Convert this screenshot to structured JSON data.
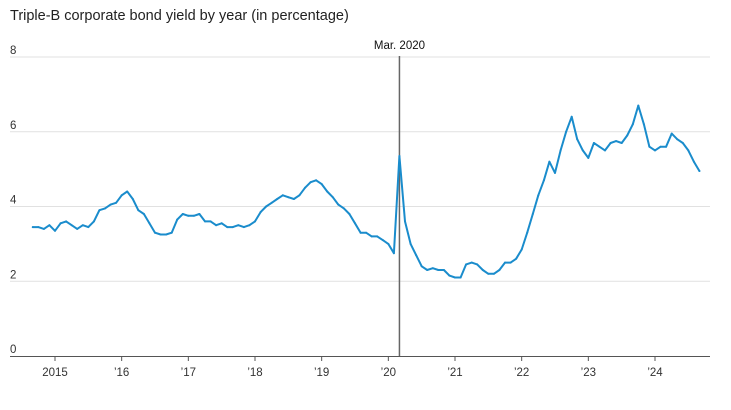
{
  "chart_data": {
    "type": "line",
    "title": "Triple-B corporate bond yield by year (in percentage)",
    "xlabel": "",
    "ylabel": "",
    "x_range": [
      "2014-09",
      "2024-09"
    ],
    "ylim": [
      0,
      8
    ],
    "y_ticks": [
      0,
      2,
      4,
      6,
      8
    ],
    "x_ticks": [
      {
        "date": "2015-01",
        "label": "2015"
      },
      {
        "date": "2016-01",
        "label": "’16"
      },
      {
        "date": "2017-01",
        "label": "’17"
      },
      {
        "date": "2018-01",
        "label": "’18"
      },
      {
        "date": "2019-01",
        "label": "’19"
      },
      {
        "date": "2020-01",
        "label": "’20"
      },
      {
        "date": "2021-01",
        "label": "’21"
      },
      {
        "date": "2022-01",
        "label": "’22"
      },
      {
        "date": "2023-01",
        "label": "’23"
      },
      {
        "date": "2024-01",
        "label": "’24"
      }
    ],
    "grid": "horizontal",
    "line_color": "#1a8ccc",
    "annotation": {
      "date": "2020-03",
      "label": "Mar. 2020",
      "color": "#666666"
    },
    "series": [
      {
        "points": [
          [
            "2014-09",
            3.45
          ],
          [
            "2014-10",
            3.45
          ],
          [
            "2014-11",
            3.4
          ],
          [
            "2014-12",
            3.5
          ],
          [
            "2015-01",
            3.35
          ],
          [
            "2015-02",
            3.55
          ],
          [
            "2015-03",
            3.6
          ],
          [
            "2015-04",
            3.5
          ],
          [
            "2015-05",
            3.4
          ],
          [
            "2015-06",
            3.5
          ],
          [
            "2015-07",
            3.45
          ],
          [
            "2015-08",
            3.6
          ],
          [
            "2015-09",
            3.9
          ],
          [
            "2015-10",
            3.95
          ],
          [
            "2015-11",
            4.05
          ],
          [
            "2015-12",
            4.1
          ],
          [
            "2016-01",
            4.3
          ],
          [
            "2016-02",
            4.4
          ],
          [
            "2016-03",
            4.2
          ],
          [
            "2016-04",
            3.9
          ],
          [
            "2016-05",
            3.8
          ],
          [
            "2016-06",
            3.55
          ],
          [
            "2016-07",
            3.3
          ],
          [
            "2016-08",
            3.25
          ],
          [
            "2016-09",
            3.25
          ],
          [
            "2016-10",
            3.3
          ],
          [
            "2016-11",
            3.65
          ],
          [
            "2016-12",
            3.8
          ],
          [
            "2017-01",
            3.75
          ],
          [
            "2017-02",
            3.75
          ],
          [
            "2017-03",
            3.8
          ],
          [
            "2017-04",
            3.6
          ],
          [
            "2017-05",
            3.6
          ],
          [
            "2017-06",
            3.5
          ],
          [
            "2017-07",
            3.55
          ],
          [
            "2017-08",
            3.45
          ],
          [
            "2017-09",
            3.45
          ],
          [
            "2017-10",
            3.5
          ],
          [
            "2017-11",
            3.45
          ],
          [
            "2017-12",
            3.5
          ],
          [
            "2018-01",
            3.6
          ],
          [
            "2018-02",
            3.85
          ],
          [
            "2018-03",
            4.0
          ],
          [
            "2018-04",
            4.1
          ],
          [
            "2018-05",
            4.2
          ],
          [
            "2018-06",
            4.3
          ],
          [
            "2018-07",
            4.25
          ],
          [
            "2018-08",
            4.2
          ],
          [
            "2018-09",
            4.3
          ],
          [
            "2018-10",
            4.5
          ],
          [
            "2018-11",
            4.65
          ],
          [
            "2018-12",
            4.7
          ],
          [
            "2019-01",
            4.6
          ],
          [
            "2019-02",
            4.4
          ],
          [
            "2019-03",
            4.25
          ],
          [
            "2019-04",
            4.05
          ],
          [
            "2019-05",
            3.95
          ],
          [
            "2019-06",
            3.8
          ],
          [
            "2019-07",
            3.55
          ],
          [
            "2019-08",
            3.3
          ],
          [
            "2019-09",
            3.3
          ],
          [
            "2019-10",
            3.2
          ],
          [
            "2019-11",
            3.2
          ],
          [
            "2019-12",
            3.1
          ],
          [
            "2020-01",
            3.0
          ],
          [
            "2020-02",
            2.75
          ],
          [
            "2020-03",
            5.35
          ],
          [
            "2020-04",
            3.6
          ],
          [
            "2020-05",
            3.0
          ],
          [
            "2020-06",
            2.7
          ],
          [
            "2020-07",
            2.4
          ],
          [
            "2020-08",
            2.3
          ],
          [
            "2020-09",
            2.35
          ],
          [
            "2020-10",
            2.3
          ],
          [
            "2020-11",
            2.3
          ],
          [
            "2020-12",
            2.15
          ],
          [
            "2021-01",
            2.1
          ],
          [
            "2021-02",
            2.1
          ],
          [
            "2021-03",
            2.45
          ],
          [
            "2021-04",
            2.5
          ],
          [
            "2021-05",
            2.45
          ],
          [
            "2021-06",
            2.3
          ],
          [
            "2021-07",
            2.2
          ],
          [
            "2021-08",
            2.2
          ],
          [
            "2021-09",
            2.3
          ],
          [
            "2021-10",
            2.5
          ],
          [
            "2021-11",
            2.5
          ],
          [
            "2021-12",
            2.6
          ],
          [
            "2022-01",
            2.85
          ],
          [
            "2022-02",
            3.3
          ],
          [
            "2022-03",
            3.8
          ],
          [
            "2022-04",
            4.3
          ],
          [
            "2022-05",
            4.7
          ],
          [
            "2022-06",
            5.2
          ],
          [
            "2022-07",
            4.9
          ],
          [
            "2022-08",
            5.5
          ],
          [
            "2022-09",
            6.0
          ],
          [
            "2022-10",
            6.4
          ],
          [
            "2022-11",
            5.8
          ],
          [
            "2022-12",
            5.5
          ],
          [
            "2023-01",
            5.3
          ],
          [
            "2023-02",
            5.7
          ],
          [
            "2023-03",
            5.6
          ],
          [
            "2023-04",
            5.5
          ],
          [
            "2023-05",
            5.7
          ],
          [
            "2023-06",
            5.75
          ],
          [
            "2023-07",
            5.7
          ],
          [
            "2023-08",
            5.9
          ],
          [
            "2023-09",
            6.2
          ],
          [
            "2023-10",
            6.7
          ],
          [
            "2023-11",
            6.2
          ],
          [
            "2023-12",
            5.6
          ],
          [
            "2024-01",
            5.5
          ],
          [
            "2024-02",
            5.6
          ],
          [
            "2024-03",
            5.6
          ],
          [
            "2024-04",
            5.95
          ],
          [
            "2024-05",
            5.8
          ],
          [
            "2024-06",
            5.7
          ],
          [
            "2024-07",
            5.5
          ],
          [
            "2024-08",
            5.2
          ],
          [
            "2024-09",
            4.95
          ]
        ]
      }
    ]
  }
}
